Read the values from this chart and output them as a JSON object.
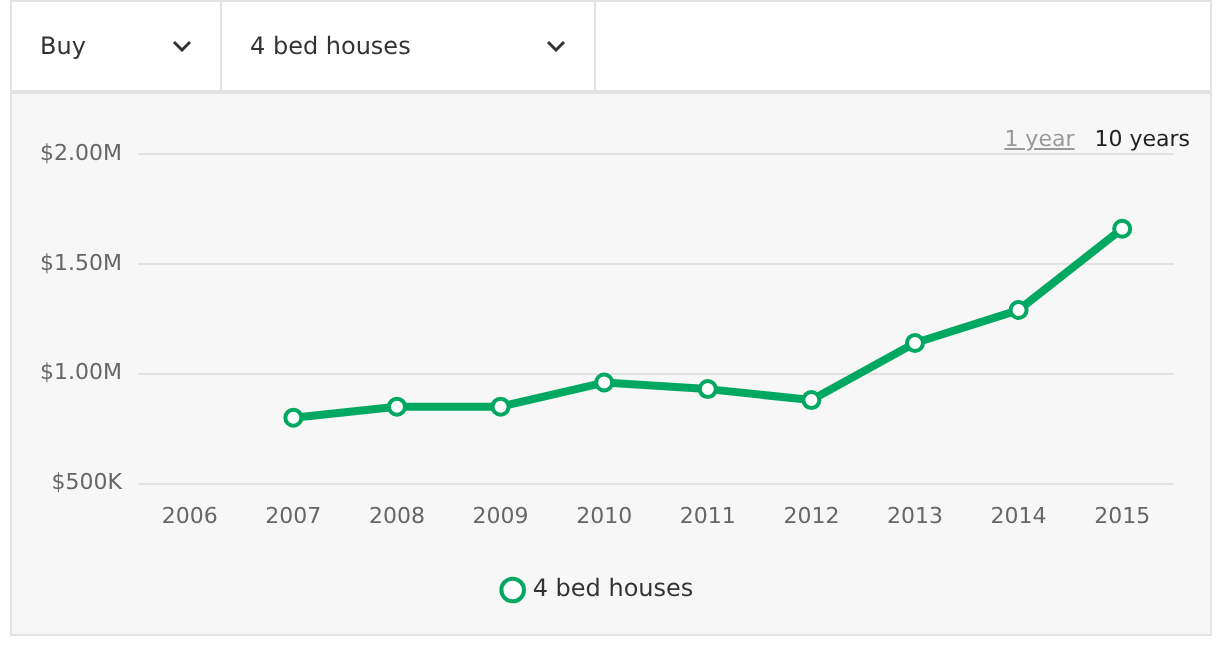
{
  "chart_data": {
    "type": "line",
    "annotations": [
      "Buy",
      "4 bed houses",
      "1 year",
      "10 years"
    ],
    "categories": [
      "2006",
      "2007",
      "2008",
      "2009",
      "2010",
      "2011",
      "2012",
      "2013",
      "2014",
      "2015"
    ],
    "series": [
      {
        "name": "4 bed houses",
        "color": "#00a862",
        "values": [
          null,
          800000,
          850000,
          850000,
          960000,
          930000,
          880000,
          1140000,
          1290000,
          1660000
        ]
      }
    ],
    "ylim": [
      500000,
      2000000
    ],
    "yticks": [
      {
        "value": 500000,
        "label": "$500K"
      },
      {
        "value": 1000000,
        "label": "$1.00M"
      },
      {
        "value": 1500000,
        "label": "$1.50M"
      },
      {
        "value": 2000000,
        "label": "$2.00M"
      }
    ],
    "grid": "y",
    "legend": "bottom",
    "marker": "circle",
    "line_style": "solid"
  }
}
